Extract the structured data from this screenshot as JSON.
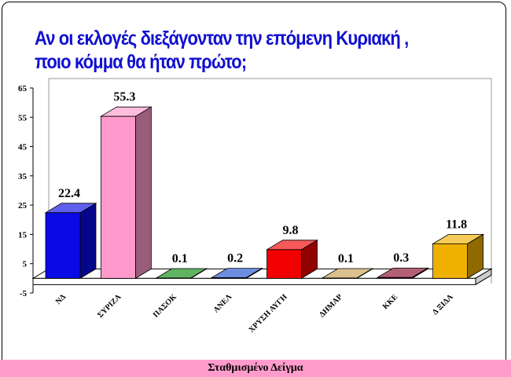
{
  "chart_data": {
    "type": "bar3d",
    "title": "Αν οι εκλογές διεξάγονταν την επόμενη Κυριακή , ποιο κόμμα θα ήταν πρώτο;",
    "categories": [
      "ΝΔ",
      "ΣΥΡΙΖΑ",
      "ΠΑΣΟΚ",
      "ΑΝΕΛ",
      "ΧΡΥΣΗ ΑΥΓΗ",
      "ΔΗΜΑΡ",
      "ΚΚΕ",
      "Δ ΞΙΔΑ"
    ],
    "values": [
      22.4,
      55.3,
      0.1,
      0.2,
      9.8,
      0.1,
      0.3,
      11.8
    ],
    "colors": [
      "#0a0ae6",
      "#ff99cc",
      "#0a8a0a",
      "#1f4fd0",
      "#f00000",
      "#c8a050",
      "#8a0a2a",
      "#f0b000"
    ],
    "ylim": [
      -5,
      65
    ],
    "yticks": [
      -5,
      5,
      15,
      25,
      35,
      45,
      55,
      65
    ],
    "footer": "Σταθμισμένο Δείγμα"
  }
}
